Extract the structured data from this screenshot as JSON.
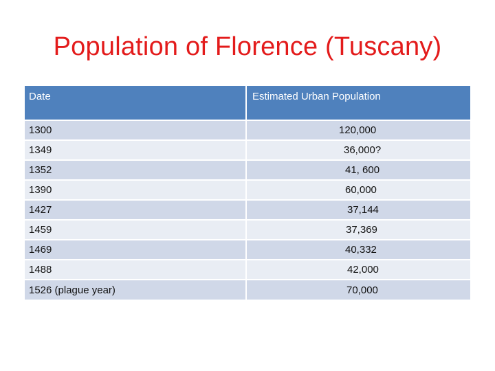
{
  "title": "Population of Florence (Tuscany)",
  "table": {
    "headers": [
      "Date",
      "Estimated Urban Population"
    ],
    "rows": [
      [
        "1300",
        "120,000"
      ],
      [
        "1349",
        "36,000?"
      ],
      [
        "1352",
        "41, 600"
      ],
      [
        "1390",
        "60,000"
      ],
      [
        "1427",
        "37,144"
      ],
      [
        "1459",
        "37,369"
      ],
      [
        "1469",
        "40,332"
      ],
      [
        "1488",
        "42,000"
      ],
      [
        "1526 (plague year)",
        "70,000"
      ]
    ]
  },
  "colors": {
    "title": "#e31b1b",
    "header_bg": "#4f81bd",
    "row_dark": "#d0d8e8",
    "row_light": "#e9edf4"
  }
}
